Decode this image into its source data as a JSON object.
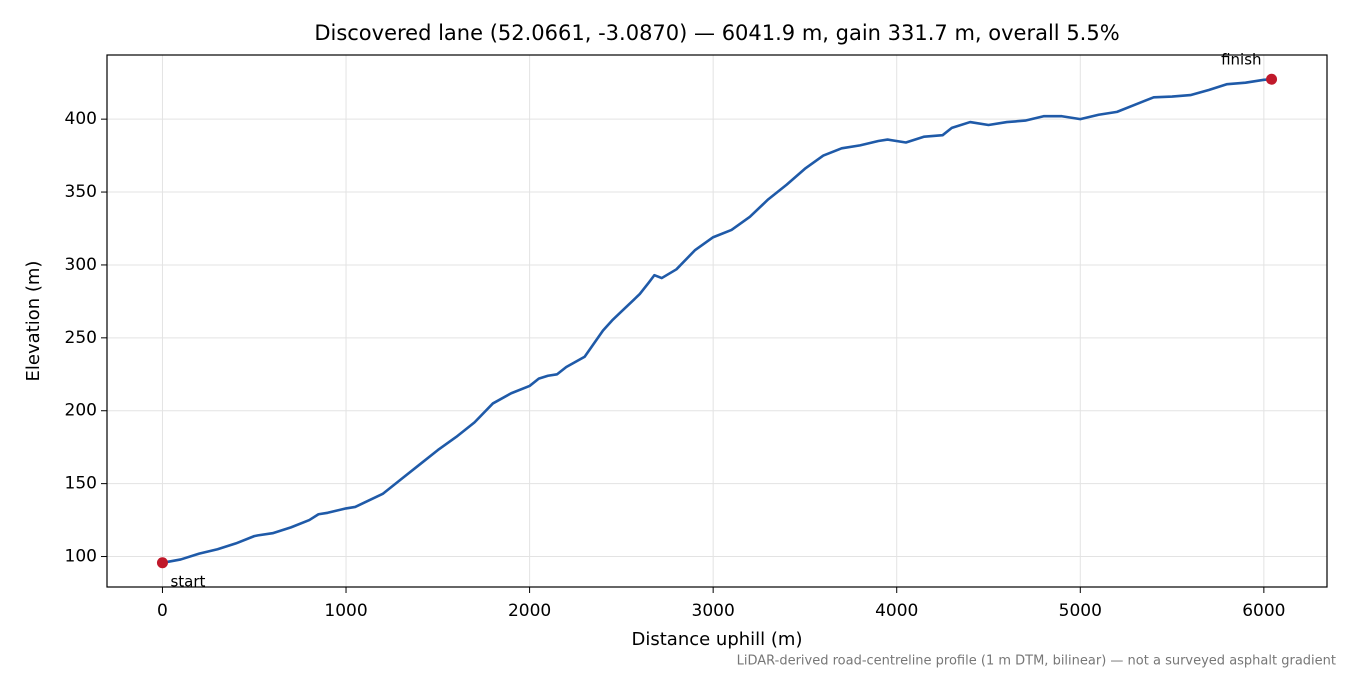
{
  "chart_data": {
    "type": "line",
    "title": "Discovered lane (52.0661, -3.0870) — 6041.9 m, gain 331.7 m, overall 5.5%",
    "xlabel": "Distance uphill (m)",
    "ylabel": "Elevation (m)",
    "footnote": "LiDAR-derived road-centreline profile (1 m DTM, bilinear) — not a surveyed asphalt gradient",
    "color": "#1f5aa8",
    "x": [
      0,
      100,
      200,
      300,
      400,
      500,
      520,
      600,
      700,
      800,
      850,
      900,
      1000,
      1050,
      1100,
      1200,
      1300,
      1400,
      1500,
      1600,
      1700,
      1800,
      1900,
      2000,
      2050,
      2100,
      2150,
      2200,
      2300,
      2400,
      2450,
      2500,
      2600,
      2650,
      2680,
      2720,
      2800,
      2900,
      3000,
      3100,
      3200,
      3300,
      3400,
      3500,
      3600,
      3700,
      3800,
      3900,
      3950,
      4050,
      4150,
      4250,
      4300,
      4400,
      4500,
      4600,
      4700,
      4800,
      4900,
      5000,
      5100,
      5200,
      5300,
      5400,
      5500,
      5600,
      5700,
      5800,
      5900,
      6000,
      6041.9
    ],
    "values": [
      95.7,
      98,
      102,
      105,
      109,
      114,
      114.5,
      116,
      120,
      125,
      129,
      130,
      133,
      134,
      137,
      143,
      153,
      163,
      173,
      182,
      192,
      205,
      212,
      217,
      222,
      224,
      225,
      230,
      237,
      255,
      262,
      268,
      280,
      288,
      293,
      291,
      297,
      310,
      319,
      324,
      333,
      345,
      355,
      366,
      375,
      380,
      382,
      385,
      386,
      384,
      388,
      389,
      394,
      398,
      396,
      398,
      399,
      402,
      402,
      400,
      403,
      405,
      410,
      415,
      415.5,
      416.5,
      420,
      424,
      425,
      427,
      427.4
    ],
    "markers": [
      {
        "x": 0,
        "y": 95.7,
        "label": "start"
      },
      {
        "x": 6041.9,
        "y": 427.4,
        "label": "finish"
      }
    ],
    "marker_color": "#c0192b",
    "xlim": [
      -302.1,
      6344.0
    ],
    "ylim": [
      79.1,
      444.0
    ],
    "xticks": [
      0,
      1000,
      2000,
      3000,
      4000,
      5000,
      6000
    ],
    "yticks": [
      100,
      150,
      200,
      250,
      300,
      350,
      400
    ],
    "grid": true
  }
}
